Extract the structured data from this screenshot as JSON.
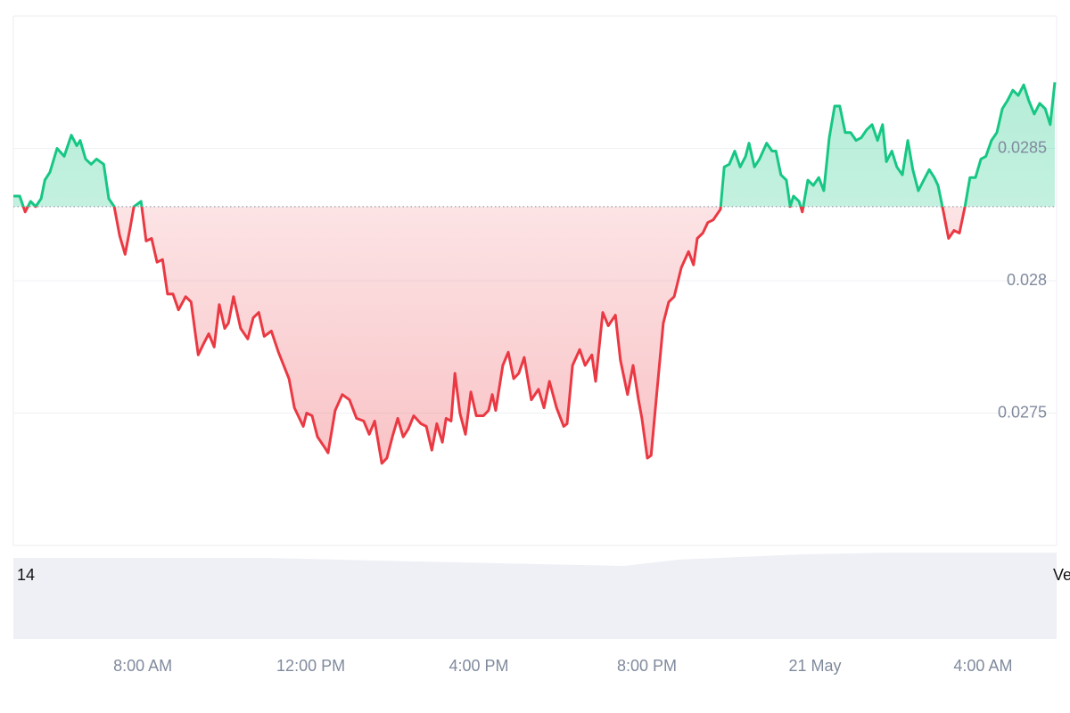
{
  "chart_data": {
    "type": "baseline-line",
    "x": [
      4.92,
      5.07,
      5.2,
      5.33,
      5.45,
      5.58,
      5.67,
      5.79,
      5.96,
      6.13,
      6.3,
      6.43,
      6.51,
      6.64,
      6.77,
      6.9,
      7.07,
      7.19,
      7.32,
      7.45,
      7.58,
      7.7,
      7.79,
      7.96,
      8.08,
      8.21,
      8.34,
      8.47,
      8.59,
      8.72,
      8.85,
      9.02,
      9.15,
      9.32,
      9.44,
      9.57,
      9.7,
      9.82,
      9.95,
      10.04,
      10.16,
      10.33,
      10.5,
      10.63,
      10.76,
      10.89,
      11.06,
      11.23,
      11.48,
      11.61,
      11.82,
      11.9,
      12.03,
      12.16,
      12.33,
      12.41,
      12.58,
      12.75,
      12.92,
      13.09,
      13.26,
      13.39,
      13.52,
      13.69,
      13.81,
      13.94,
      14.07,
      14.2,
      14.32,
      14.45,
      14.62,
      14.75,
      14.88,
      15.0,
      15.13,
      15.22,
      15.34,
      15.43,
      15.55,
      15.68,
      15.81,
      15.94,
      16.11,
      16.23,
      16.32,
      16.4,
      16.57,
      16.7,
      16.83,
      16.95,
      17.08,
      17.25,
      17.42,
      17.55,
      17.68,
      17.85,
      18.02,
      18.1,
      18.23,
      18.4,
      18.53,
      18.69,
      18.78,
      18.95,
      19.08,
      19.25,
      19.37,
      19.54,
      19.67,
      19.8,
      19.88,
      20.01,
      20.1,
      20.22,
      20.39,
      20.52,
      20.65,
      20.82,
      20.99,
      21.11,
      21.2,
      21.33,
      21.45,
      21.58,
      21.75,
      21.84,
      21.96,
      22.09,
      22.22,
      22.35,
      22.43,
      22.56,
      22.68,
      22.85,
      22.98,
      23.07,
      23.19,
      23.32,
      23.41,
      23.49,
      23.62,
      23.7,
      23.83,
      23.96,
      24.09,
      24.21,
      24.34,
      24.47,
      24.59,
      24.72,
      24.85,
      24.98,
      25.1,
      25.23,
      25.36,
      25.49,
      25.61,
      25.7,
      25.83,
      25.95,
      26.08,
      26.21,
      26.33,
      26.46,
      26.59,
      26.72,
      26.84,
      26.93,
      27.06,
      27.18,
      27.31,
      27.44,
      27.57,
      27.69,
      27.82,
      27.95,
      28.07,
      28.2,
      28.33,
      28.46,
      28.58,
      28.71,
      28.84,
      28.97,
      29.09,
      29.22,
      29.35,
      29.48,
      29.6,
      29.71
    ],
    "values": [
      0.02832,
      0.02832,
      0.02826,
      0.0283,
      0.02828,
      0.02831,
      0.02838,
      0.02841,
      0.0285,
      0.02847,
      0.02855,
      0.02851,
      0.02853,
      0.02846,
      0.02844,
      0.02846,
      0.02844,
      0.02831,
      0.02828,
      0.02817,
      0.0281,
      0.0282,
      0.02828,
      0.0283,
      0.02815,
      0.02816,
      0.02807,
      0.02808,
      0.02795,
      0.02795,
      0.02789,
      0.02794,
      0.02792,
      0.02772,
      0.02776,
      0.0278,
      0.02775,
      0.02791,
      0.02782,
      0.02784,
      0.02794,
      0.02782,
      0.02778,
      0.02786,
      0.02788,
      0.02779,
      0.02781,
      0.02773,
      0.02763,
      0.02752,
      0.02745,
      0.0275,
      0.02749,
      0.02741,
      0.02737,
      0.02735,
      0.02751,
      0.02757,
      0.02755,
      0.02748,
      0.02747,
      0.02742,
      0.02747,
      0.02731,
      0.02733,
      0.02741,
      0.02748,
      0.02741,
      0.02744,
      0.02749,
      0.02746,
      0.02745,
      0.02736,
      0.02746,
      0.02739,
      0.02748,
      0.02747,
      0.02765,
      0.0275,
      0.02742,
      0.02758,
      0.02749,
      0.02749,
      0.02751,
      0.02757,
      0.02751,
      0.02768,
      0.02773,
      0.02763,
      0.02765,
      0.02771,
      0.02755,
      0.02759,
      0.02752,
      0.02762,
      0.02752,
      0.02745,
      0.02746,
      0.02768,
      0.02774,
      0.02768,
      0.02772,
      0.02762,
      0.02788,
      0.02783,
      0.02787,
      0.0277,
      0.02757,
      0.02768,
      0.02755,
      0.02748,
      0.02733,
      0.02734,
      0.02755,
      0.02784,
      0.02792,
      0.02794,
      0.02805,
      0.02811,
      0.02806,
      0.02816,
      0.02818,
      0.02822,
      0.02823,
      0.02827,
      0.02843,
      0.02844,
      0.02849,
      0.02843,
      0.02847,
      0.02852,
      0.02843,
      0.02846,
      0.02852,
      0.02849,
      0.02849,
      0.0284,
      0.02838,
      0.02828,
      0.02832,
      0.0283,
      0.02826,
      0.02838,
      0.02836,
      0.02839,
      0.02834,
      0.02854,
      0.02866,
      0.02866,
      0.02856,
      0.02856,
      0.02853,
      0.02854,
      0.02857,
      0.02859,
      0.02853,
      0.02859,
      0.02845,
      0.02849,
      0.02843,
      0.0284,
      0.02853,
      0.02842,
      0.02834,
      0.02838,
      0.02842,
      0.02839,
      0.02836,
      0.02826,
      0.02816,
      0.02819,
      0.02818,
      0.02828,
      0.02839,
      0.02839,
      0.02846,
      0.02847,
      0.02853,
      0.02856,
      0.02865,
      0.02868,
      0.02872,
      0.0287,
      0.02874,
      0.02868,
      0.02863,
      0.02867,
      0.02865,
      0.02859,
      0.02875
    ],
    "baseline": 0.02828,
    "up_color": "#16c784",
    "down_color": "#ea3943",
    "xlim": [
      4.92,
      29.71
    ],
    "xticks": [
      {
        "value": 8,
        "label": "8:00 AM"
      },
      {
        "value": 12,
        "label": "12:00 PM"
      },
      {
        "value": 16,
        "label": "4:00 PM"
      },
      {
        "value": 20,
        "label": "8:00 PM"
      },
      {
        "value": 24,
        "label": "21 May"
      },
      {
        "value": 28,
        "label": "4:00 AM"
      }
    ],
    "ylim": [
      0.027,
      0.029
    ],
    "yticks": [
      0.0275,
      0.028,
      0.0285
    ],
    "grid": true,
    "annotations": [
      "14",
      "Ve"
    ]
  }
}
